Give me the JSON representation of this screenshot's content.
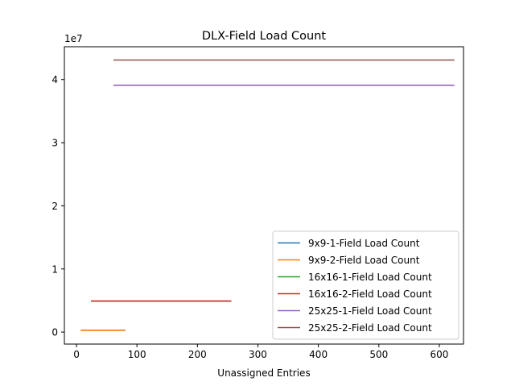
{
  "chart_data": {
    "type": "line",
    "title": "DLX-Field Load Count",
    "xlabel": "Unassigned Entries",
    "ylabel": "",
    "y_offset_label": "1e7",
    "xlim": [
      -20,
      640
    ],
    "ylim": [
      -1.9,
      45.2
    ],
    "x_ticks": [
      0,
      100,
      200,
      300,
      400,
      500,
      600
    ],
    "y_ticks": [
      0,
      1,
      2,
      3,
      4
    ],
    "grid": false,
    "legend_position": "lower-right",
    "series": [
      {
        "name": "9x9-1-Field Load Count",
        "color": "#1f77b4",
        "x": [
          7,
          81
        ],
        "y": [
          0.3,
          0.3
        ]
      },
      {
        "name": "9x9-2-Field Load Count",
        "color": "#ff7f0e",
        "x": [
          7,
          81
        ],
        "y": [
          0.3,
          0.3
        ]
      },
      {
        "name": "16x16-1-Field Load Count",
        "color": "#2ca02c",
        "x": [
          24,
          256
        ],
        "y": [
          4.9,
          4.9
        ]
      },
      {
        "name": "16x16-2-Field Load Count",
        "color": "#d62728",
        "x": [
          24,
          256
        ],
        "y": [
          4.9,
          4.9
        ]
      },
      {
        "name": "25x25-1-Field Load Count",
        "color": "#9467bd",
        "x": [
          61,
          625
        ],
        "y": [
          39.1,
          39.1
        ]
      },
      {
        "name": "25x25-2-Field Load Count",
        "color": "#8c564b",
        "x": [
          61,
          625
        ],
        "y": [
          43.1,
          43.1
        ]
      }
    ]
  }
}
